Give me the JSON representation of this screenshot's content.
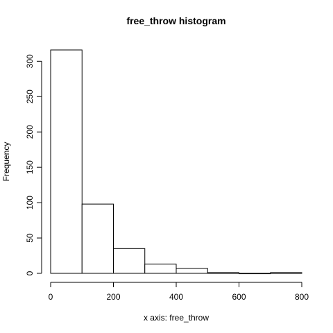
{
  "chart_data": {
    "type": "bar",
    "title": "free_throw histogram",
    "xlabel": "x axis: free_throw",
    "ylabel": "Frequency",
    "bins": [
      {
        "start": 0,
        "end": 100,
        "count": 316
      },
      {
        "start": 100,
        "end": 200,
        "count": 98
      },
      {
        "start": 200,
        "end": 300,
        "count": 35
      },
      {
        "start": 300,
        "end": 400,
        "count": 13
      },
      {
        "start": 400,
        "end": 500,
        "count": 7
      },
      {
        "start": 500,
        "end": 600,
        "count": 1
      },
      {
        "start": 600,
        "end": 700,
        "count": 0
      },
      {
        "start": 700,
        "end": 800,
        "count": 1
      }
    ],
    "xlim": [
      0,
      800
    ],
    "ylim": [
      0,
      316
    ],
    "x_ticks": [
      0,
      200,
      400,
      600,
      800
    ],
    "y_ticks": [
      0,
      50,
      100,
      150,
      200,
      250,
      300
    ],
    "grid": false,
    "legend": "none",
    "colors": {
      "bar_fill": "#ffffff",
      "bar_stroke": "#000000",
      "axis": "#000000",
      "text": "#000000"
    }
  }
}
